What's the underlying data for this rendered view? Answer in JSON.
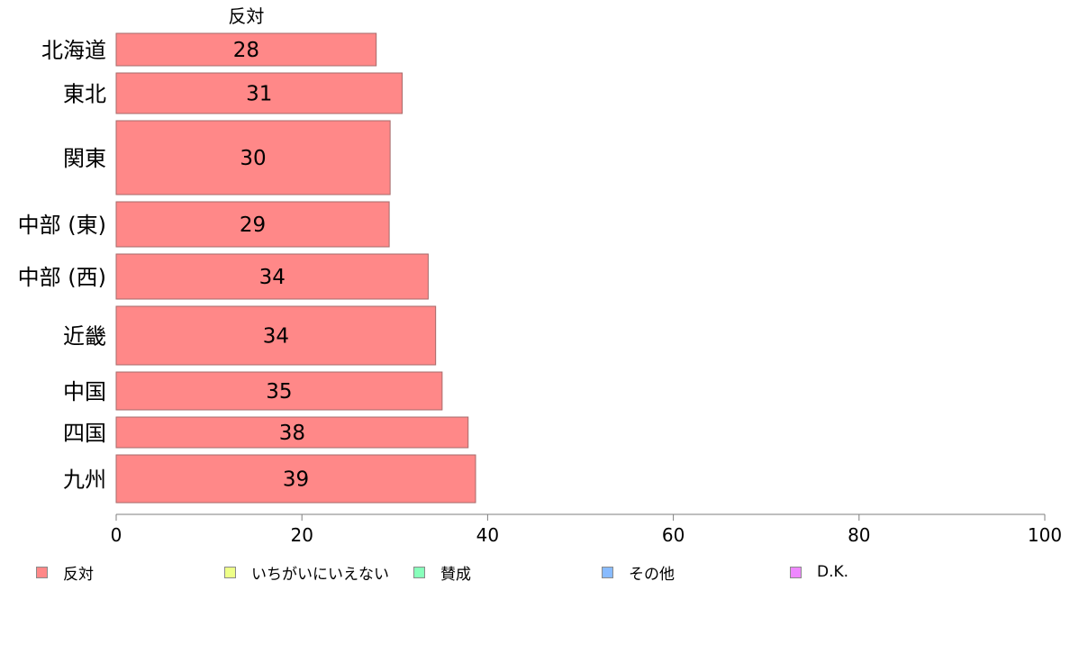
{
  "chart_data": {
    "type": "bar",
    "orientation": "horizontal",
    "column_title": "反対",
    "categories": [
      "北海道",
      "東北",
      "関東",
      "中部 (東)",
      "中部 (西)",
      "近畿",
      "中国",
      "四国",
      "九州"
    ],
    "series": [
      {
        "name": "反対",
        "color": "#ff8888",
        "values": [
          28,
          30.8,
          29.5,
          29.4,
          33.6,
          34.4,
          35.1,
          37.9,
          38.7
        ],
        "labels": [
          "28",
          "31",
          "30",
          "29",
          "34",
          "34",
          "35",
          "38",
          "39"
        ]
      }
    ],
    "xlim": [
      0,
      100
    ],
    "xticks": [
      "0",
      "20",
      "40",
      "60",
      "80",
      "100"
    ],
    "xlabel": "",
    "ylabel": "",
    "grid": false,
    "legend_position": "bottom"
  },
  "legend": [
    {
      "label": "反対",
      "color": "#ff8888"
    },
    {
      "label": "いちがいにいえない",
      "color": "#eeff88"
    },
    {
      "label": "賛成",
      "color": "#88ffbb"
    },
    {
      "label": "その他",
      "color": "#88bbff"
    },
    {
      "label": "D.K.",
      "color": "#ee88ff"
    }
  ]
}
